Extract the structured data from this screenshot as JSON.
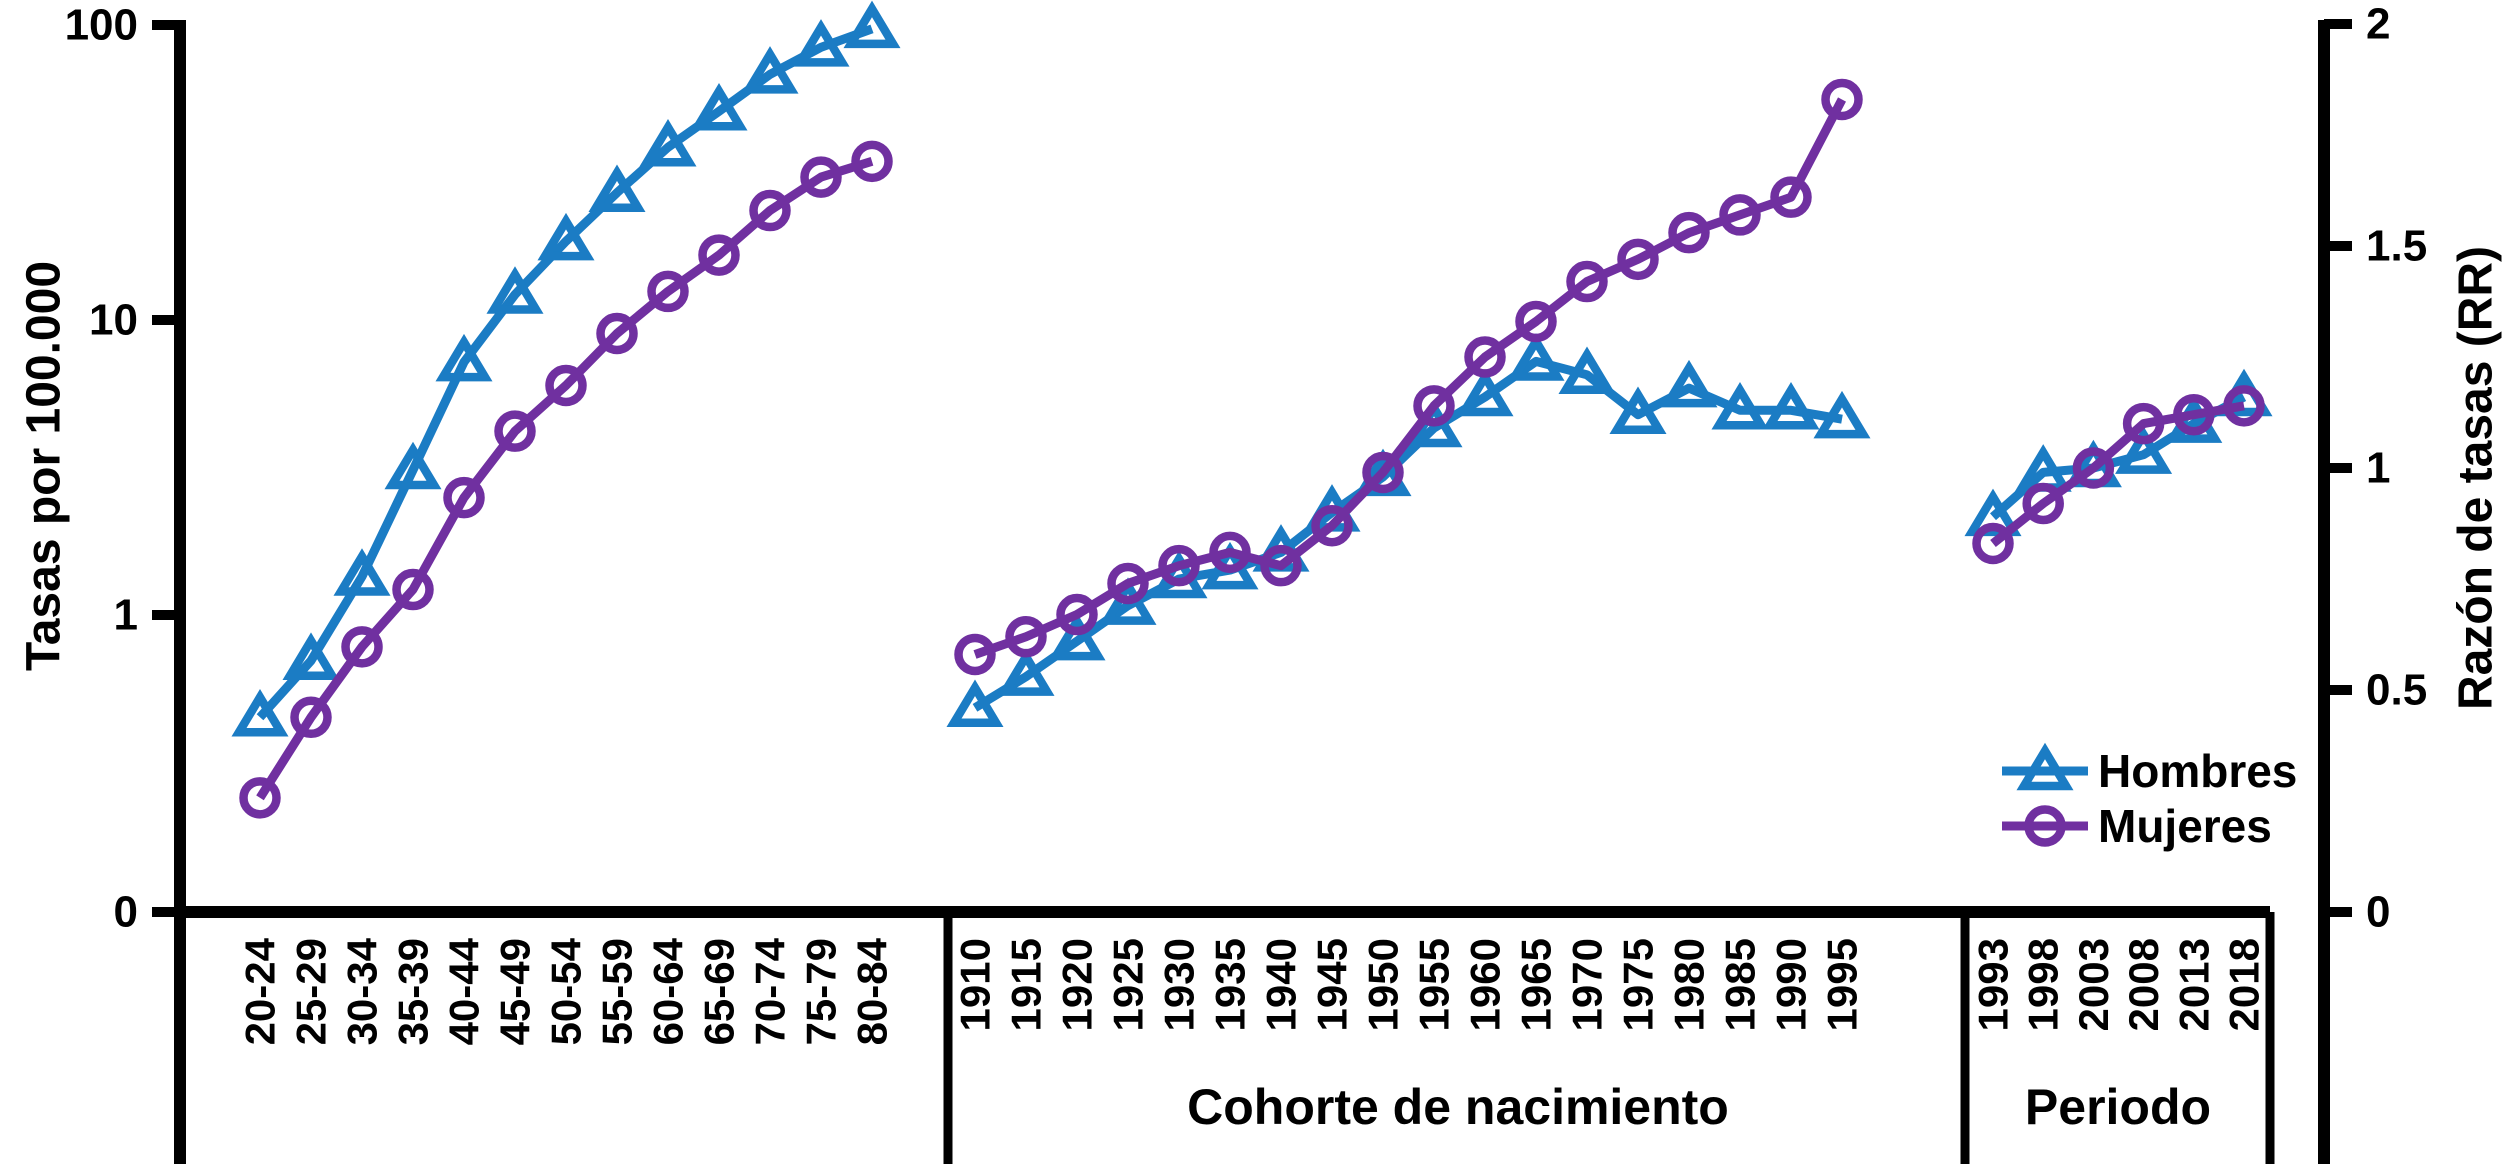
{
  "figure_type": "age-period-cohort line chart",
  "colors": {
    "hombres": "#1b7cc4",
    "mujeres": "#7030a0",
    "axis": "#000000",
    "background": "#ffffff"
  },
  "axes": {
    "left": {
      "title": "Tasas por 100.000",
      "scale": "log",
      "ticks": [
        "100",
        "10",
        "1",
        "0"
      ],
      "tick_values": [
        100,
        10,
        1,
        0
      ]
    },
    "right": {
      "title": "Razón de tasas (RR)",
      "scale": "linear",
      "ticks": [
        "2",
        "1.5",
        "1",
        "0.5",
        "0"
      ],
      "tick_values": [
        2,
        1.5,
        1,
        0.5,
        0
      ],
      "ylim": [
        0,
        2
      ]
    }
  },
  "legend": [
    {
      "label": "Hombres",
      "marker": "triangle",
      "color": "#1b7cc4"
    },
    {
      "label": "Mujeres",
      "marker": "circle",
      "color": "#7030a0"
    }
  ],
  "chart_data": [
    {
      "type": "line",
      "panel": "edad",
      "xlabel": "",
      "y_axis": "left",
      "ylabel": "Tasas por 100.000",
      "yscale": "log",
      "ylim": [
        0.1,
        100
      ],
      "grid": false,
      "categories": [
        "20-24",
        "25-29",
        "30-34",
        "35-39",
        "40-44",
        "45-49",
        "50-54",
        "55-59",
        "60-64",
        "65-69",
        "70-74",
        "75-79",
        "80-84"
      ],
      "series": [
        {
          "name": "Hombres",
          "values": [
            0.45,
            0.7,
            1.35,
            3.1,
            7.2,
            12.2,
            18.5,
            27,
            38.5,
            51,
            68,
            84,
            97
          ]
        },
        {
          "name": "Mujeres",
          "values": [
            0.24,
            0.45,
            0.78,
            1.22,
            2.5,
            4.2,
            6.0,
            9.0,
            12.5,
            16.6,
            23.5,
            30.5,
            34.5
          ]
        }
      ]
    },
    {
      "type": "line",
      "panel": "cohorte",
      "xlabel": "Cohorte de nacimiento",
      "y_axis": "right",
      "ylabel": "Razón de tasas (RR)",
      "yscale": "linear",
      "ylim": [
        0,
        2
      ],
      "grid": false,
      "categories": [
        "1910",
        "1915",
        "1920",
        "1925",
        "1930",
        "1935",
        "1940",
        "1945",
        "1950",
        "1955",
        "1960",
        "1965",
        "1970",
        "1975",
        "1980",
        "1985",
        "1990",
        "1995"
      ],
      "series": [
        {
          "name": "Hombres",
          "values": [
            0.46,
            0.53,
            0.61,
            0.69,
            0.75,
            0.77,
            0.81,
            0.9,
            0.98,
            1.09,
            1.16,
            1.24,
            1.21,
            1.12,
            1.18,
            1.13,
            1.13,
            1.11
          ]
        },
        {
          "name": "Mujeres",
          "values": [
            0.58,
            0.62,
            0.67,
            0.74,
            0.78,
            0.81,
            0.78,
            0.87,
            0.99,
            1.14,
            1.25,
            1.33,
            1.42,
            1.47,
            1.53,
            1.57,
            1.61,
            1.83
          ]
        }
      ]
    },
    {
      "type": "line",
      "panel": "periodo",
      "xlabel": "Periodo",
      "y_axis": "right",
      "ylabel": "Razón de tasas (RR)",
      "yscale": "linear",
      "ylim": [
        0,
        2
      ],
      "grid": false,
      "categories": [
        "1993",
        "1998",
        "2003",
        "2008",
        "2013",
        "2018"
      ],
      "series": [
        {
          "name": "Hombres",
          "values": [
            0.89,
            0.99,
            1.0,
            1.03,
            1.1,
            1.16
          ]
        },
        {
          "name": "Mujeres",
          "values": [
            0.83,
            0.92,
            1.0,
            1.1,
            1.12,
            1.14
          ]
        }
      ]
    }
  ]
}
